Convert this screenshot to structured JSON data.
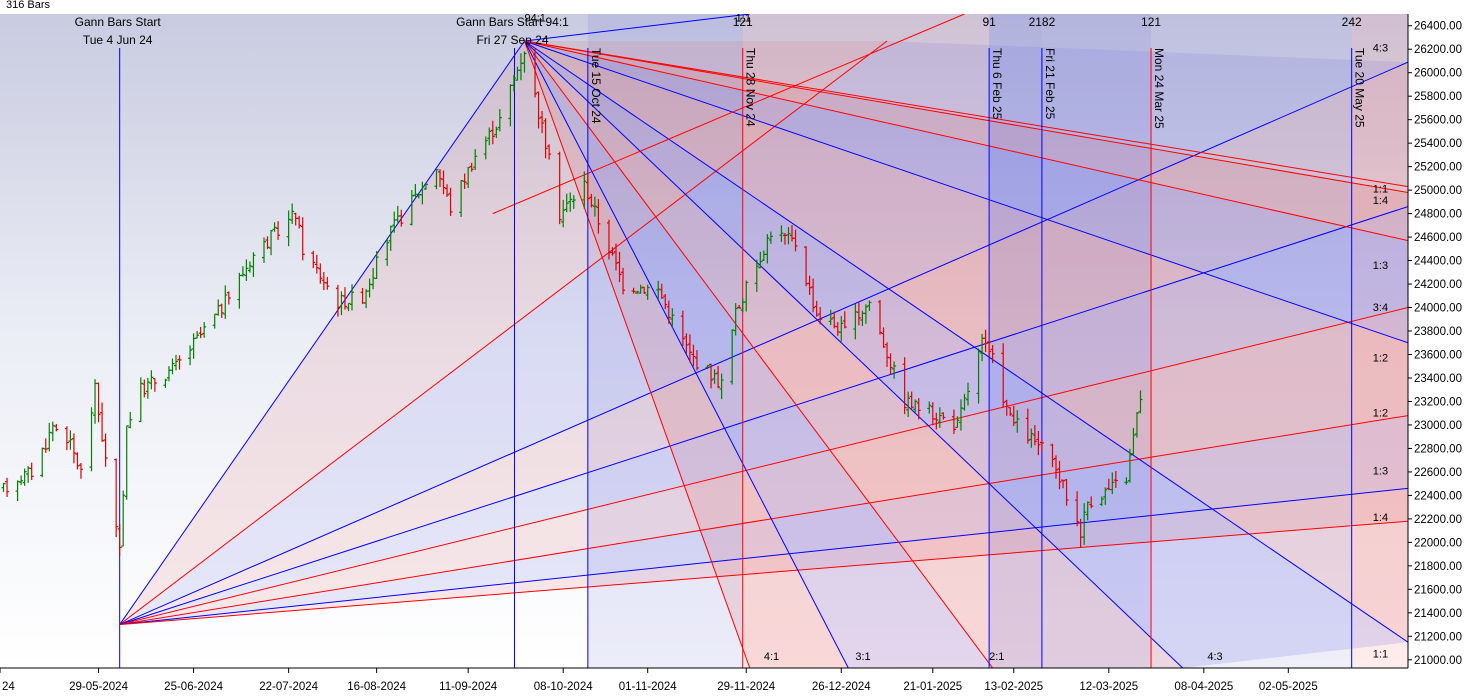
{
  "header": {
    "bars_caption": "316 Bars"
  },
  "chart_data": {
    "type": "bar",
    "kind": "ohlc price chart with gann fan overlay",
    "ylim": [
      20930,
      26500
    ],
    "y_ticks": [
      21000,
      21200,
      21400,
      21600,
      21800,
      22000,
      22200,
      22400,
      22600,
      22800,
      23000,
      23200,
      23400,
      23600,
      23800,
      24000,
      24200,
      24400,
      24600,
      24800,
      25000,
      25200,
      25400,
      25600,
      25800,
      26000,
      26200,
      26400
    ],
    "y_tick_format": "2dp",
    "x_start": "2024-05-01",
    "x_end": "2025-06-05",
    "x_ticks": [
      {
        "date": "2024-05-01",
        "label": "24"
      },
      {
        "date": "2024-05-29",
        "label": "29-05-2024"
      },
      {
        "date": "2024-06-25",
        "label": "25-06-2024"
      },
      {
        "date": "2024-07-22",
        "label": "22-07-2024"
      },
      {
        "date": "2024-08-16",
        "label": "16-08-2024"
      },
      {
        "date": "2024-09-11",
        "label": "11-09-2024"
      },
      {
        "date": "2024-10-08",
        "label": "08-10-2024"
      },
      {
        "date": "2024-11-01",
        "label": "01-11-2024"
      },
      {
        "date": "2024-11-29",
        "label": "29-11-2024"
      },
      {
        "date": "2024-12-26",
        "label": "26-12-2024"
      },
      {
        "date": "2025-01-21",
        "label": "21-01-2025"
      },
      {
        "date": "2025-02-13",
        "label": "13-02-2025"
      },
      {
        "date": "2025-03-12",
        "label": "12-03-2025"
      },
      {
        "date": "2025-04-08",
        "label": "08-04-2025"
      },
      {
        "date": "2025-05-02",
        "label": "02-05-2025"
      }
    ],
    "price_path": [
      [
        "2024-05-02",
        22450
      ],
      [
        "2024-05-06",
        22550
      ],
      [
        "2024-05-10",
        22600
      ],
      [
        "2024-05-14",
        22850
      ],
      [
        "2024-05-16",
        23000
      ],
      [
        "2024-05-20",
        22900
      ],
      [
        "2024-05-24",
        22600
      ],
      [
        "2024-05-28",
        23300
      ],
      [
        "2024-06-04",
        21900
      ],
      [
        "2024-06-06",
        23000
      ],
      [
        "2024-06-10",
        23300
      ],
      [
        "2024-06-20",
        23500
      ],
      [
        "2024-07-03",
        24000
      ],
      [
        "2024-07-12",
        24450
      ],
      [
        "2024-07-24",
        24800
      ],
      [
        "2024-07-26",
        24500
      ],
      [
        "2024-08-05",
        24050
      ],
      [
        "2024-08-12",
        24100
      ],
      [
        "2024-08-20",
        24650
      ],
      [
        "2024-09-02",
        25200
      ],
      [
        "2024-09-06",
        24850
      ],
      [
        "2024-09-13",
        25300
      ],
      [
        "2024-09-20",
        25600
      ],
      [
        "2024-09-24",
        25950
      ],
      [
        "2024-09-27",
        26200
      ],
      [
        "2024-10-03",
        25400
      ],
      [
        "2024-10-07",
        24800
      ],
      [
        "2024-10-14",
        25050
      ],
      [
        "2024-10-25",
        24200
      ],
      [
        "2024-11-04",
        24150
      ],
      [
        "2024-11-13",
        23600
      ],
      [
        "2024-11-22",
        23350
      ],
      [
        "2024-11-26",
        23950
      ],
      [
        "2024-12-06",
        24650
      ],
      [
        "2024-12-13",
        24550
      ],
      [
        "2024-12-19",
        23950
      ],
      [
        "2024-12-27",
        23800
      ],
      [
        "2025-01-03",
        24050
      ],
      [
        "2025-01-07",
        23700
      ],
      [
        "2025-01-13",
        23200
      ],
      [
        "2025-01-21",
        23100
      ],
      [
        "2025-01-28",
        23000
      ],
      [
        "2025-02-04",
        23700
      ],
      [
        "2025-02-07",
        23550
      ],
      [
        "2025-02-12",
        23050
      ],
      [
        "2025-02-21",
        22800
      ],
      [
        "2025-02-26",
        22550
      ],
      [
        "2025-03-04",
        22100
      ],
      [
        "2025-03-06",
        22350
      ],
      [
        "2025-03-12",
        22450
      ],
      [
        "2025-03-17",
        22550
      ],
      [
        "2025-03-21",
        23250
      ]
    ],
    "anchors": [
      {
        "date": "2024-06-04",
        "price": 21300,
        "line1": "Gann Bars Start",
        "line2": "Tue 4 Jun 24"
      },
      {
        "date": "2024-09-27",
        "price": 26270,
        "line1": "Gann Bars Start 94:1",
        "line2": "Fri 27 Sep 24"
      }
    ],
    "vertical_markers": [
      {
        "date": "2024-10-15",
        "label": "Tue 15 Oct 24",
        "color": "#0000ff"
      },
      {
        "date": "2024-11-28",
        "label": "Thu 28 Nov 24",
        "color": "#ff0000"
      },
      {
        "date": "2025-02-06",
        "label": "Thu 6 Feb 25",
        "color": "#0000ff"
      },
      {
        "date": "2025-02-21",
        "label": "Fri 21 Feb 25",
        "color": "#0000ff"
      },
      {
        "date": "2025-03-24",
        "label": "Mon 24 Mar 25",
        "color": "#ff0000"
      },
      {
        "date": "2025-05-20",
        "label": "Tue 20 May 25",
        "color": "#0000ff"
      }
    ],
    "bar_counts": [
      {
        "date": "2024-11-28",
        "label": "121"
      },
      {
        "date": "2025-02-06",
        "label": "91"
      },
      {
        "date": "2025-02-21",
        "label": "2182"
      },
      {
        "date": "2025-03-24",
        "label": "121"
      },
      {
        "date": "2025-05-20",
        "label": "242"
      }
    ],
    "fan_from_june": [
      {
        "end_date": "2024-09-27",
        "end_price": 26270,
        "color": "#0000ff"
      },
      {
        "end_date": "2025-01-08",
        "end_price": 26270,
        "color": "#ff0000"
      },
      {
        "end_date": "2025-06-05",
        "end_price": 26090,
        "color": "#0000ff"
      },
      {
        "end_date": "2025-06-05",
        "end_price": 24860,
        "color": "#0000ff"
      },
      {
        "end_date": "2025-06-05",
        "end_price": 24000,
        "color": "#ff0000"
      },
      {
        "end_date": "2025-06-05",
        "end_price": 23080,
        "color": "#ff0000"
      },
      {
        "end_date": "2025-06-05",
        "end_price": 22460,
        "color": "#0000ff"
      },
      {
        "end_date": "2025-06-05",
        "end_price": 22180,
        "color": "#ff0000"
      }
    ],
    "fan_from_sep": [
      {
        "end_date": "2024-11-30",
        "end_price": 20930,
        "color": "#ff0000"
      },
      {
        "end_date": "2024-12-28",
        "end_price": 20930,
        "color": "#0000ff"
      },
      {
        "end_date": "2025-02-07",
        "end_price": 20930,
        "color": "#ff0000"
      },
      {
        "end_date": "2025-04-02",
        "end_price": 20930,
        "color": "#0000ff"
      },
      {
        "end_date": "2025-06-05",
        "end_price": 21150,
        "color": "#0000ff"
      },
      {
        "end_date": "2025-06-05",
        "end_price": 23700,
        "color": "#0000ff"
      },
      {
        "end_date": "2025-06-05",
        "end_price": 24570,
        "color": "#ff0000"
      },
      {
        "end_date": "2025-06-05",
        "end_price": 24980,
        "color": "#ff0000"
      }
    ],
    "extra_lines": [
      {
        "from": [
          "2024-09-27",
          26270
        ],
        "to": [
          "2024-11-30",
          26500
        ],
        "color": "#0000ff"
      },
      {
        "from": [
          "2024-09-18",
          24800
        ],
        "to": [
          "2025-01-30",
          26500
        ],
        "color": "#ff0000"
      },
      {
        "from": [
          "2024-09-27",
          26270
        ],
        "to": [
          "2025-06-05",
          25030
        ],
        "color": "#ff0000"
      }
    ],
    "fan_labels": [
      {
        "date": "2024-12-04",
        "price": 21000,
        "label": "4:1"
      },
      {
        "date": "2024-12-30",
        "price": 21000,
        "label": "3:1"
      },
      {
        "date": "2025-02-06",
        "price": 21000,
        "label": "2:1"
      },
      {
        "date": "2025-04-09",
        "price": 21000,
        "label": "4:3"
      },
      {
        "date": "2024-09-27",
        "price": 26435,
        "label": "94:1"
      },
      {
        "date": "2024-11-26",
        "price": 26435,
        "label": "1:1"
      },
      {
        "date": "2025-05-26",
        "price": 26180,
        "label": "4:3"
      },
      {
        "date": "2025-05-26",
        "price": 24980,
        "label": "1:1"
      },
      {
        "date": "2025-05-26",
        "price": 24880,
        "label": "1:4"
      },
      {
        "date": "2025-05-26",
        "price": 24330,
        "label": "1:3"
      },
      {
        "date": "2025-05-26",
        "price": 23970,
        "label": "3:4"
      },
      {
        "date": "2025-05-26",
        "price": 23540,
        "label": "1:2"
      },
      {
        "date": "2025-05-26",
        "price": 23070,
        "label": "1:2"
      },
      {
        "date": "2025-05-26",
        "price": 22580,
        "label": "1:3"
      },
      {
        "date": "2025-05-26",
        "price": 22180,
        "label": "1:4"
      },
      {
        "date": "2025-05-26",
        "price": 21020,
        "label": "1:1"
      }
    ]
  },
  "colors": {
    "axis_bg": "#e6e8f4",
    "up_bar": "#008000",
    "down_bar": "#e00000",
    "blue": "#0000ff",
    "red": "#ff0000"
  }
}
